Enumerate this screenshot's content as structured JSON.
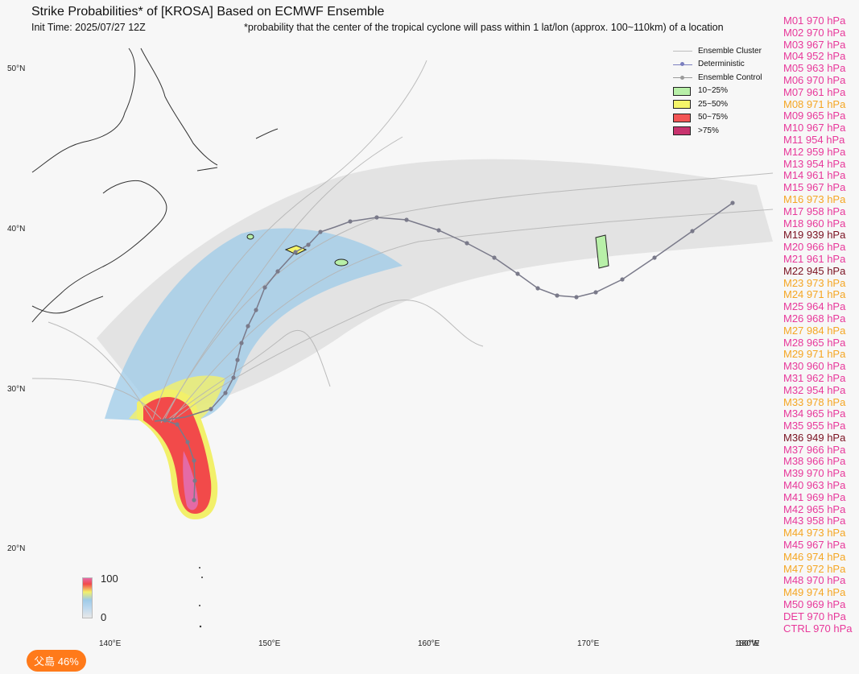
{
  "title": "Strike Probabilities* of [KROSA] Based on ECMWF Ensemble",
  "init_time": "Init Time: 2025/07/27 12Z",
  "footnote": "*probability that the center of the tropical cyclone will pass within 1 lat/lon (approx. 100~110km) of a location",
  "lat_labels": [
    "50°N",
    "40°N",
    "30°N",
    "20°N"
  ],
  "lon_labels": [
    "140°E",
    "150°E",
    "160°E",
    "170°E",
    "180°W",
    "180°E"
  ],
  "legend": {
    "items": [
      {
        "label": "Ensemble Cluster",
        "kind": "line",
        "color": "#bdbdbd"
      },
      {
        "label": "Deterministic",
        "kind": "line-dot",
        "color": "#7b7fbf"
      },
      {
        "label": "Ensemble Control",
        "kind": "line-dot",
        "color": "#9a9a9a"
      },
      {
        "label": "10~25%",
        "kind": "box",
        "color": "#b8f0a8"
      },
      {
        "label": "25~50%",
        "kind": "box",
        "color": "#f5f56a"
      },
      {
        "label": "50~75%",
        "kind": "box",
        "color": "#f25454"
      },
      {
        "label": ">75%",
        "kind": "box",
        "color": "#c8336e"
      }
    ]
  },
  "colorbar": {
    "max_label": "100",
    "min_label": "0"
  },
  "members": [
    {
      "text": "M01 970 hPa",
      "color": "#e8389a"
    },
    {
      "text": "M02 970 hPa",
      "color": "#e8389a"
    },
    {
      "text": "M03 967 hPa",
      "color": "#e8389a"
    },
    {
      "text": "M04 952 hPa",
      "color": "#e8389a"
    },
    {
      "text": "M05 963 hPa",
      "color": "#e8389a"
    },
    {
      "text": "M06 970 hPa",
      "color": "#e8389a"
    },
    {
      "text": "M07 961 hPa",
      "color": "#e8389a"
    },
    {
      "text": "M08 971 hPa",
      "color": "#f5a623"
    },
    {
      "text": "M09 965 hPa",
      "color": "#e8389a"
    },
    {
      "text": "M10 967 hPa",
      "color": "#e8389a"
    },
    {
      "text": "M11 954 hPa",
      "color": "#e8389a"
    },
    {
      "text": "M12 959 hPa",
      "color": "#e8389a"
    },
    {
      "text": "M13 954 hPa",
      "color": "#e8389a"
    },
    {
      "text": "M14 961 hPa",
      "color": "#e8389a"
    },
    {
      "text": "M15 967 hPa",
      "color": "#e8389a"
    },
    {
      "text": "M16 973 hPa",
      "color": "#f5a623"
    },
    {
      "text": "M17 958 hPa",
      "color": "#e8389a"
    },
    {
      "text": "M18 960 hPa",
      "color": "#e8389a"
    },
    {
      "text": "M19 939 hPa",
      "color": "#7a1020"
    },
    {
      "text": "M20 966 hPa",
      "color": "#e8389a"
    },
    {
      "text": "M21 961 hPa",
      "color": "#e8389a"
    },
    {
      "text": "M22 945 hPa",
      "color": "#7a1020"
    },
    {
      "text": "M23 973 hPa",
      "color": "#f5a623"
    },
    {
      "text": "M24 971 hPa",
      "color": "#f5a623"
    },
    {
      "text": "M25 964 hPa",
      "color": "#e8389a"
    },
    {
      "text": "M26 968 hPa",
      "color": "#e8389a"
    },
    {
      "text": "M27 984 hPa",
      "color": "#f5a623"
    },
    {
      "text": "M28 965 hPa",
      "color": "#e8389a"
    },
    {
      "text": "M29 971 hPa",
      "color": "#f5a623"
    },
    {
      "text": "M30 960 hPa",
      "color": "#e8389a"
    },
    {
      "text": "M31 962 hPa",
      "color": "#e8389a"
    },
    {
      "text": "M32 954 hPa",
      "color": "#e8389a"
    },
    {
      "text": "M33 978 hPa",
      "color": "#f5a623"
    },
    {
      "text": "M34 965 hPa",
      "color": "#e8389a"
    },
    {
      "text": "M35 955 hPa",
      "color": "#e8389a"
    },
    {
      "text": "M36 949 hPa",
      "color": "#7a1020"
    },
    {
      "text": "M37 966 hPa",
      "color": "#e8389a"
    },
    {
      "text": "M38 966 hPa",
      "color": "#e8389a"
    },
    {
      "text": "M39 970 hPa",
      "color": "#e8389a"
    },
    {
      "text": "M40 963 hPa",
      "color": "#e8389a"
    },
    {
      "text": "M41 969 hPa",
      "color": "#e8389a"
    },
    {
      "text": "M42 965 hPa",
      "color": "#e8389a"
    },
    {
      "text": "M43 958 hPa",
      "color": "#e8389a"
    },
    {
      "text": "M44 973 hPa",
      "color": "#f5a623"
    },
    {
      "text": "M45 967 hPa",
      "color": "#e8389a"
    },
    {
      "text": "M46 974 hPa",
      "color": "#f5a623"
    },
    {
      "text": "M47 972 hPa",
      "color": "#f5a623"
    },
    {
      "text": "M48 970 hPa",
      "color": "#e8389a"
    },
    {
      "text": "M49 974 hPa",
      "color": "#f5a623"
    },
    {
      "text": "M50 969 hPa",
      "color": "#e8389a"
    },
    {
      "text": "DET 970 hPa",
      "color": "#e8389a"
    },
    {
      "text": "CTRL 970 hPa",
      "color": "#e8389a"
    }
  ],
  "location_badge": {
    "text": "父島 46%",
    "color": "#ff7a1a"
  }
}
